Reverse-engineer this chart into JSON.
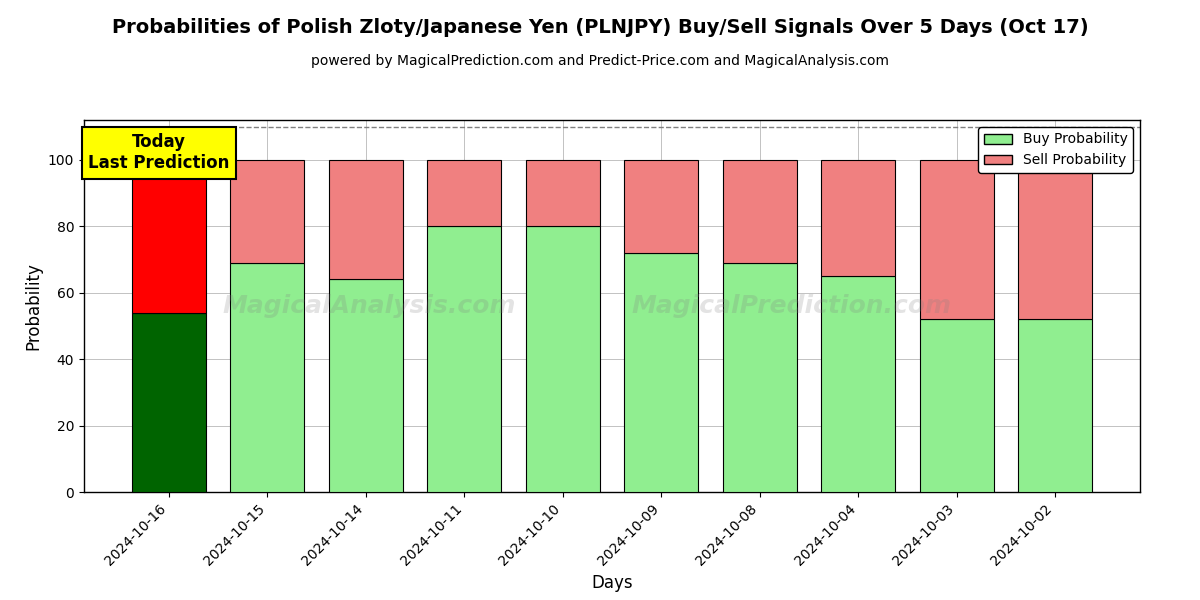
{
  "title": "Probabilities of Polish Zloty/Japanese Yen (PLNJPY) Buy/Sell Signals Over 5 Days (Oct 17)",
  "subtitle": "powered by MagicalPrediction.com and Predict-Price.com and MagicalAnalysis.com",
  "xlabel": "Days",
  "ylabel": "Probability",
  "dates": [
    "2024-10-16",
    "2024-10-15",
    "2024-10-14",
    "2024-10-11",
    "2024-10-10",
    "2024-10-09",
    "2024-10-08",
    "2024-10-04",
    "2024-10-03",
    "2024-10-02"
  ],
  "buy_values": [
    54,
    69,
    64,
    80,
    80,
    72,
    69,
    65,
    52,
    52
  ],
  "sell_values": [
    46,
    31,
    36,
    20,
    20,
    28,
    31,
    35,
    48,
    48
  ],
  "today_buy_color": "#006400",
  "today_sell_color": "#FF0000",
  "buy_color": "#90EE90",
  "sell_color": "#F08080",
  "bar_edgecolor": "#000000",
  "ylim": [
    0,
    112
  ],
  "yticks": [
    0,
    20,
    40,
    60,
    80,
    100
  ],
  "dashed_line_y": 110,
  "today_annotation": "Today\nLast Prediction",
  "today_annotation_bg": "#FFFF00",
  "background_color": "#FFFFFF",
  "grid_color": "#AAAAAA",
  "title_fontsize": 14,
  "subtitle_fontsize": 10,
  "axis_label_fontsize": 12,
  "tick_fontsize": 10,
  "legend_fontsize": 10,
  "bar_width": 0.75
}
